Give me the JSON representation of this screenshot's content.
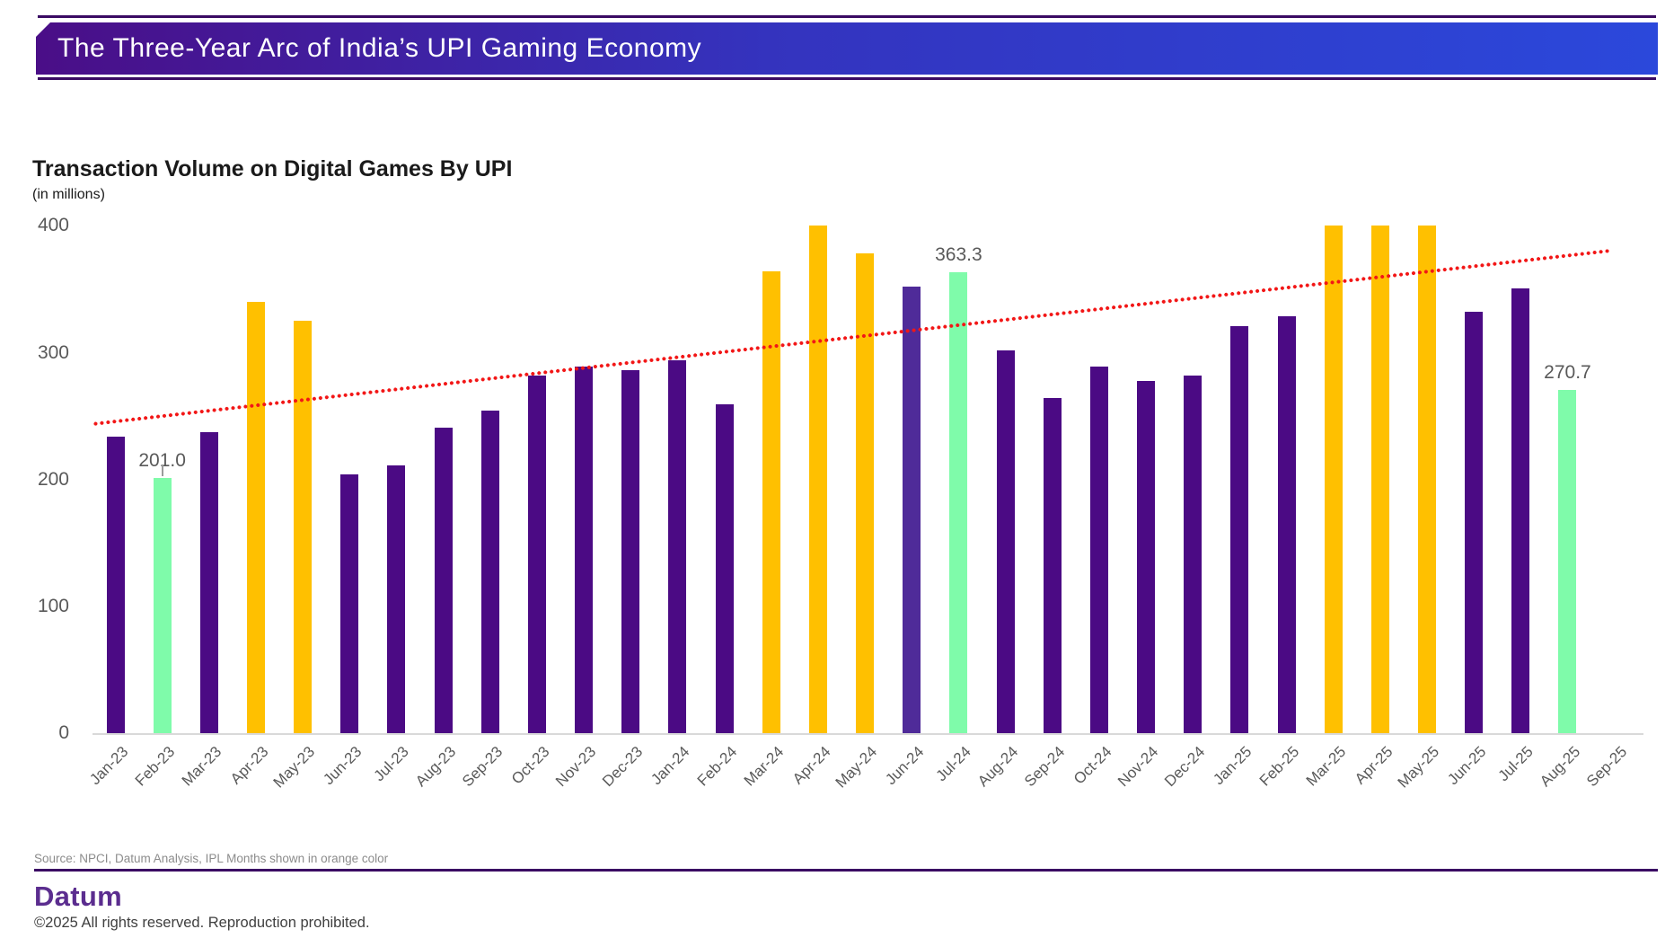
{
  "header": {
    "title": "The Three-Year Arc of India’s UPI Gaming Economy"
  },
  "chart": {
    "title": "Transaction Volume on Digital Games By UPI",
    "subtitle": "(in millions)"
  },
  "chart_data": {
    "type": "bar",
    "title": "Transaction Volume on Digital Games By UPI",
    "unit_note": "in millions",
    "ylim": [
      0,
      400
    ],
    "yticks": [
      0,
      100,
      200,
      300,
      400
    ],
    "grid": false,
    "legend_note": "IPL Months shown in orange color",
    "bars": [
      {
        "month": "Jan-23",
        "value": 234,
        "role": "purple"
      },
      {
        "month": "Feb-23",
        "value": 201.0,
        "role": "green",
        "label": "201.0",
        "connector": true
      },
      {
        "month": "Mar-23",
        "value": 237,
        "role": "purple"
      },
      {
        "month": "Apr-23",
        "value": 340,
        "role": "orange"
      },
      {
        "month": "May-23",
        "value": 325,
        "role": "orange"
      },
      {
        "month": "Jun-23",
        "value": 204,
        "role": "purple"
      },
      {
        "month": "Jul-23",
        "value": 211,
        "role": "purple"
      },
      {
        "month": "Aug-23",
        "value": 241,
        "role": "purple"
      },
      {
        "month": "Sep-23",
        "value": 254,
        "role": "purple"
      },
      {
        "month": "Oct-23",
        "value": 282,
        "role": "purple"
      },
      {
        "month": "Nov-23",
        "value": 289,
        "role": "purple"
      },
      {
        "month": "Dec-23",
        "value": 286,
        "role": "purple"
      },
      {
        "month": "Jan-24",
        "value": 294,
        "role": "purple"
      },
      {
        "month": "Feb-24",
        "value": 259,
        "role": "purple"
      },
      {
        "month": "Mar-24",
        "value": 364,
        "role": "orange"
      },
      {
        "month": "Apr-24",
        "value": 400,
        "role": "orange"
      },
      {
        "month": "May-24",
        "value": 378,
        "role": "orange"
      },
      {
        "month": "Jun-24",
        "value": 352,
        "role": "indigo"
      },
      {
        "month": "Jul-24",
        "value": 363.3,
        "role": "green",
        "label": "363.3"
      },
      {
        "month": "Aug-24",
        "value": 302,
        "role": "purple"
      },
      {
        "month": "Sep-24",
        "value": 264,
        "role": "purple"
      },
      {
        "month": "Oct-24",
        "value": 289,
        "role": "purple"
      },
      {
        "month": "Nov-24",
        "value": 278,
        "role": "purple"
      },
      {
        "month": "Dec-24",
        "value": 282,
        "role": "purple"
      },
      {
        "month": "Jan-25",
        "value": 321,
        "role": "purple"
      },
      {
        "month": "Feb-25",
        "value": 329,
        "role": "purple"
      },
      {
        "month": "Mar-25",
        "value": 400,
        "role": "orange"
      },
      {
        "month": "Apr-25",
        "value": 400,
        "role": "orange"
      },
      {
        "month": "May-25",
        "value": 400,
        "role": "orange"
      },
      {
        "month": "Jun-25",
        "value": 332,
        "role": "purple"
      },
      {
        "month": "Jul-25",
        "value": 351,
        "role": "purple"
      },
      {
        "month": "Aug-25",
        "value": 270.7,
        "role": "green",
        "label": "270.7"
      },
      {
        "month": "Sep-25",
        "value": null,
        "role": "none"
      }
    ],
    "trendline": {
      "type": "linear",
      "color": "#F21616",
      "style": "dotted",
      "from_month": "Jan-23",
      "from_value": 246,
      "to_month": "Sep-25",
      "to_value": 381
    }
  },
  "colors": {
    "purple": "#4B0A84",
    "indigo": "#4F2B99",
    "orange": "#FFC000",
    "green": "#7FFBAA",
    "trend": "#F21616",
    "banner_left": "#4A0E87",
    "banner_right": "#2B48DB",
    "brand_purple": "#5B2D8F"
  },
  "footer": {
    "source": "Source: NPCI, Datum Analysis, IPL Months shown in orange color",
    "brand": "Datum",
    "copyright": "©2025 All rights reserved. Reproduction prohibited."
  }
}
